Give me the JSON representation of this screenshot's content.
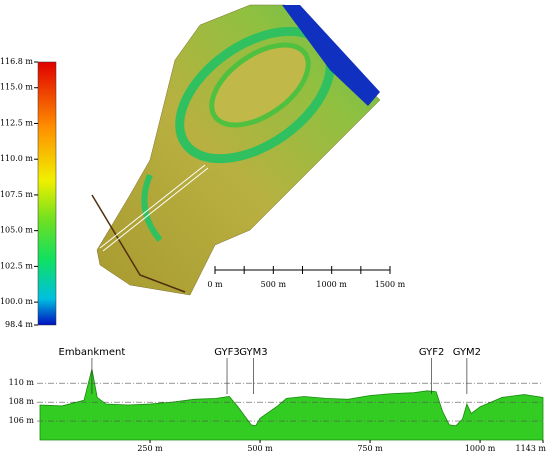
{
  "colorbar": {
    "ylim": [
      98.4,
      116.8
    ],
    "ticks": [
      {
        "value": 116.8,
        "label": "116.8 m"
      },
      {
        "value": 115,
        "label": "115.0 m"
      },
      {
        "value": 112.5,
        "label": "112.5 m"
      },
      {
        "value": 110,
        "label": "110.0 m"
      },
      {
        "value": 107.5,
        "label": "107.5 m"
      },
      {
        "value": 105,
        "label": "105.0 m"
      },
      {
        "value": 102.5,
        "label": "102.5 m"
      },
      {
        "value": 100,
        "label": "100.0 m"
      },
      {
        "value": 98.4,
        "label": "98.4 m"
      }
    ]
  },
  "scale_bar": {
    "xlim": [
      0,
      1500
    ],
    "ticks": [
      0,
      250,
      500,
      750,
      1000,
      1250,
      1500
    ],
    "labels": [
      {
        "value": 0,
        "label": "0 m"
      },
      {
        "value": 500,
        "label": "500 m"
      },
      {
        "value": 1000,
        "label": "1000 m"
      },
      {
        "value": 1500,
        "label": "1500 m"
      }
    ]
  },
  "profile": {
    "type": "area",
    "color": "#33cc22",
    "x": [
      0,
      50,
      100,
      118,
      130,
      150,
      200,
      250,
      300,
      350,
      400,
      430,
      450,
      480,
      490,
      500,
      540,
      560,
      600,
      650,
      700,
      750,
      800,
      850,
      880,
      900,
      915,
      930,
      945,
      960,
      970,
      980,
      1000,
      1050,
      1100,
      1143
    ],
    "values": [
      107.7,
      107.6,
      108.2,
      111.5,
      108.5,
      107.8,
      107.7,
      107.8,
      108.0,
      108.3,
      108.4,
      108.6,
      107.5,
      105.6,
      105.5,
      106.3,
      107.6,
      108.4,
      108.6,
      108.4,
      108.3,
      108.7,
      108.9,
      109.0,
      109.2,
      109.1,
      107.0,
      105.6,
      105.5,
      106.2,
      107.8,
      106.8,
      107.5,
      108.5,
      108.8,
      108.5
    ],
    "xlim": [
      0,
      1143
    ],
    "ylim": [
      104,
      113.3
    ],
    "xticks": [
      {
        "value": 250,
        "label": "250 m"
      },
      {
        "value": 500,
        "label": "500 m"
      },
      {
        "value": 750,
        "label": "750 m"
      },
      {
        "value": 1000,
        "label": "1000 m"
      },
      {
        "value": 1143,
        "label": "1143 m"
      }
    ],
    "yticks": [
      {
        "value": 106,
        "label": "106 m"
      },
      {
        "value": 108,
        "label": "108 m"
      },
      {
        "value": 110,
        "label": "110 m"
      }
    ],
    "annotations": [
      {
        "x": 118,
        "label": "Embankment"
      },
      {
        "x": 425,
        "label": "GYF3"
      },
      {
        "x": 485,
        "label": "GYM3"
      },
      {
        "x": 890,
        "label": "GYF2"
      },
      {
        "x": 970,
        "label": "GYM2"
      }
    ]
  }
}
